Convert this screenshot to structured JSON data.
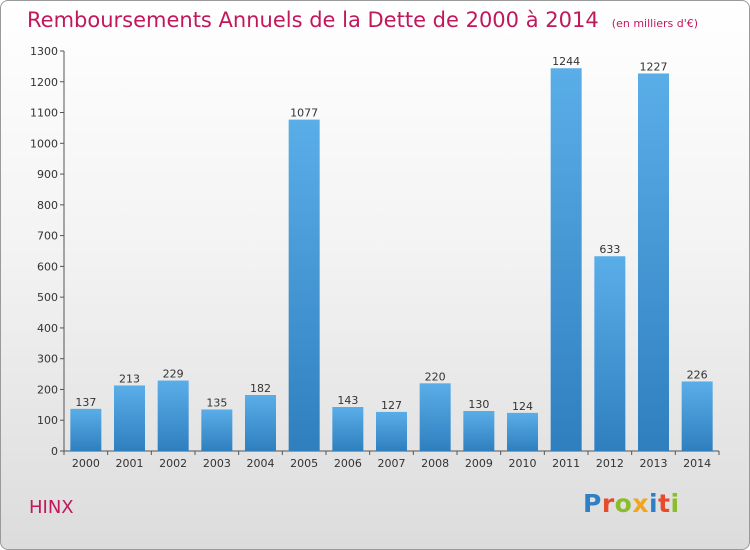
{
  "title": "Remboursements Annuels de la Dette de 2000 à 2014",
  "unit_note": "(en milliers d'€)",
  "commune": "HINX",
  "logo": {
    "text": "Proxiti",
    "colors": [
      "#2f7fc4",
      "#e84a2c",
      "#8bbd2a",
      "#f2a51f",
      "#2f7fc4",
      "#e84a2c",
      "#8bbd2a"
    ]
  },
  "colors": {
    "bar_light": "#5aaee8",
    "bar_dark": "#2f7fbf",
    "title": "#c2185b"
  },
  "chart_data": {
    "type": "bar",
    "categories": [
      "2000",
      "2001",
      "2002",
      "2003",
      "2004",
      "2005",
      "2006",
      "2007",
      "2008",
      "2009",
      "2010",
      "2011",
      "2012",
      "2013",
      "2014"
    ],
    "values": [
      137,
      213,
      229,
      135,
      182,
      1077,
      143,
      127,
      220,
      130,
      124,
      1244,
      633,
      1227,
      226
    ],
    "ylim": [
      0,
      1300
    ],
    "yticks": [
      0,
      100,
      200,
      300,
      400,
      500,
      600,
      700,
      800,
      900,
      1000,
      1100,
      1200,
      1300
    ],
    "grid": false,
    "legend": "none"
  }
}
